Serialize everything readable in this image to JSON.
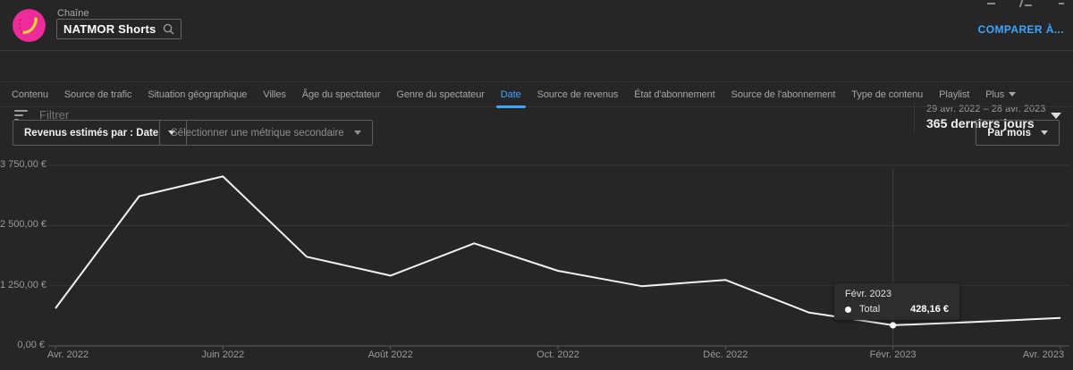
{
  "header": {
    "channel_label": "Chaîne",
    "channel_name": "NATMOR Shorts",
    "compare_link": "COMPARER À..."
  },
  "filter_bar": {
    "placeholder": "Filtrer",
    "date_range": "29 avr. 2022 – 28 avr. 2023",
    "date_preset": "365 derniers jours"
  },
  "tabs": {
    "items": [
      {
        "label": "Contenu",
        "active": false
      },
      {
        "label": "Source de trafic",
        "active": false
      },
      {
        "label": "Situation géographique",
        "active": false
      },
      {
        "label": "Villes",
        "active": false
      },
      {
        "label": "Âge du spectateur",
        "active": false
      },
      {
        "label": "Genre du spectateur",
        "active": false
      },
      {
        "label": "Date",
        "active": true
      },
      {
        "label": "Source de revenus",
        "active": false
      },
      {
        "label": "État d'abonnement",
        "active": false
      },
      {
        "label": "Source de l'abonnement",
        "active": false
      },
      {
        "label": "Type de contenu",
        "active": false
      },
      {
        "label": "Playlist",
        "active": false
      },
      {
        "label": "Plus",
        "active": false,
        "has_caret": true
      }
    ]
  },
  "controls": {
    "metric_dropdown": "Revenus estimés par : Date",
    "secondary_metric_dropdown": "Sélectionner une métrique secondaire",
    "granularity_dropdown": "Par mois"
  },
  "chart_data": {
    "type": "line",
    "x": [
      "Avr. 2022",
      "Mai 2022",
      "Juin 2022",
      "Juil. 2022",
      "Août 2022",
      "Sept. 2022",
      "Oct. 2022",
      "Nov. 2022",
      "Déc. 2022",
      "Janv. 2023",
      "Févr. 2023",
      "Mars 2023",
      "Avr. 2023"
    ],
    "series": [
      {
        "name": "Total",
        "values": [
          780,
          3110,
          3520,
          1850,
          1460,
          2130,
          1560,
          1240,
          1370,
          690,
          428.16,
          500,
          580
        ]
      }
    ],
    "ylim": [
      0,
      3750
    ],
    "yticks": [
      0,
      1250,
      2500,
      3750
    ],
    "ytick_labels": [
      "0,00 €",
      "1 250,00 €",
      "2 500,00 €",
      "3 750,00 €"
    ],
    "xtick_indices": [
      0,
      2,
      4,
      6,
      8,
      10,
      12
    ],
    "xtick_labels": [
      "Avr. 2022",
      "Juin 2022",
      "Août 2022",
      "Oct. 2022",
      "Déc. 2022",
      "Févr. 2023",
      "Avr. 2023"
    ],
    "grid": true,
    "legend_position": "none",
    "hover": {
      "index": 10,
      "label": "Févr. 2023",
      "series": "Total",
      "value": 428.16,
      "value_label": "428,16 €"
    }
  },
  "tooltip": {
    "title": "Févr. 2023",
    "series": "Total",
    "value": "428,16 €"
  },
  "colors": {
    "background": "#262626",
    "accent_blue": "#3ea6ff",
    "line": "#f1f1f1",
    "gridline": "#363636",
    "axis": "#5c5c5c",
    "avatar_pink": "#ee2b9b",
    "avatar_yellow": "#f7d14b"
  }
}
